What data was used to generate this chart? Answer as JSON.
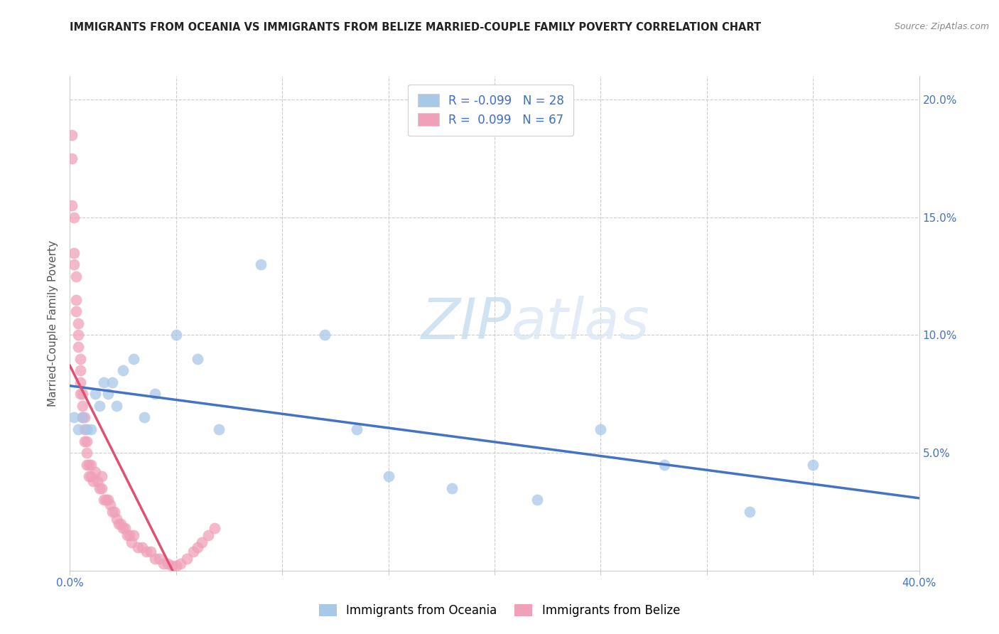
{
  "title": "IMMIGRANTS FROM OCEANIA VS IMMIGRANTS FROM BELIZE MARRIED-COUPLE FAMILY POVERTY CORRELATION CHART",
  "source": "Source: ZipAtlas.com",
  "ylabel": "Married-Couple Family Poverty",
  "xlim": [
    0.0,
    0.4
  ],
  "ylim": [
    0.0,
    0.21
  ],
  "xtick_positions": [
    0.0,
    0.05,
    0.1,
    0.15,
    0.2,
    0.25,
    0.3,
    0.35,
    0.4
  ],
  "xticklabels": [
    "0.0%",
    "",
    "",
    "",
    "",
    "",
    "",
    "",
    "40.0%"
  ],
  "ytick_positions": [
    0.0,
    0.05,
    0.1,
    0.15,
    0.2
  ],
  "yticklabels_right": [
    "",
    "5.0%",
    "10.0%",
    "15.0%",
    "20.0%"
  ],
  "oceania_color": "#a8c8e8",
  "belize_color": "#f0a0b8",
  "oceania_line_color": "#4472c4",
  "belize_line_color": "#e05070",
  "dashed_color": "#e0a0b0",
  "watermark_zip": "ZIP",
  "watermark_atlas": "atlas",
  "oceania_x": [
    0.002,
    0.004,
    0.006,
    0.008,
    0.01,
    0.012,
    0.014,
    0.016,
    0.018,
    0.02,
    0.022,
    0.025,
    0.03,
    0.035,
    0.04,
    0.05,
    0.06,
    0.07,
    0.09,
    0.12,
    0.135,
    0.15,
    0.18,
    0.22,
    0.25,
    0.28,
    0.32,
    0.35
  ],
  "oceania_y": [
    0.065,
    0.06,
    0.065,
    0.06,
    0.06,
    0.075,
    0.07,
    0.08,
    0.075,
    0.08,
    0.07,
    0.085,
    0.09,
    0.065,
    0.075,
    0.1,
    0.09,
    0.06,
    0.13,
    0.1,
    0.06,
    0.04,
    0.035,
    0.03,
    0.06,
    0.045,
    0.025,
    0.045
  ],
  "belize_x": [
    0.001,
    0.001,
    0.001,
    0.002,
    0.002,
    0.002,
    0.003,
    0.003,
    0.003,
    0.004,
    0.004,
    0.004,
    0.005,
    0.005,
    0.005,
    0.005,
    0.006,
    0.006,
    0.006,
    0.007,
    0.007,
    0.007,
    0.008,
    0.008,
    0.008,
    0.009,
    0.009,
    0.01,
    0.01,
    0.011,
    0.012,
    0.013,
    0.014,
    0.015,
    0.015,
    0.016,
    0.017,
    0.018,
    0.019,
    0.02,
    0.021,
    0.022,
    0.023,
    0.024,
    0.025,
    0.026,
    0.027,
    0.028,
    0.029,
    0.03,
    0.032,
    0.034,
    0.036,
    0.038,
    0.04,
    0.042,
    0.044,
    0.046,
    0.048,
    0.05,
    0.052,
    0.055,
    0.058,
    0.06,
    0.062,
    0.065,
    0.068
  ],
  "belize_y": [
    0.185,
    0.175,
    0.155,
    0.15,
    0.135,
    0.13,
    0.125,
    0.115,
    0.11,
    0.105,
    0.1,
    0.095,
    0.09,
    0.085,
    0.08,
    0.075,
    0.075,
    0.07,
    0.065,
    0.065,
    0.06,
    0.055,
    0.055,
    0.05,
    0.045,
    0.045,
    0.04,
    0.04,
    0.045,
    0.038,
    0.042,
    0.038,
    0.035,
    0.04,
    0.035,
    0.03,
    0.03,
    0.03,
    0.028,
    0.025,
    0.025,
    0.022,
    0.02,
    0.02,
    0.018,
    0.018,
    0.015,
    0.015,
    0.012,
    0.015,
    0.01,
    0.01,
    0.008,
    0.008,
    0.005,
    0.005,
    0.003,
    0.003,
    0.002,
    0.002,
    0.003,
    0.005,
    0.008,
    0.01,
    0.012,
    0.015,
    0.018
  ]
}
